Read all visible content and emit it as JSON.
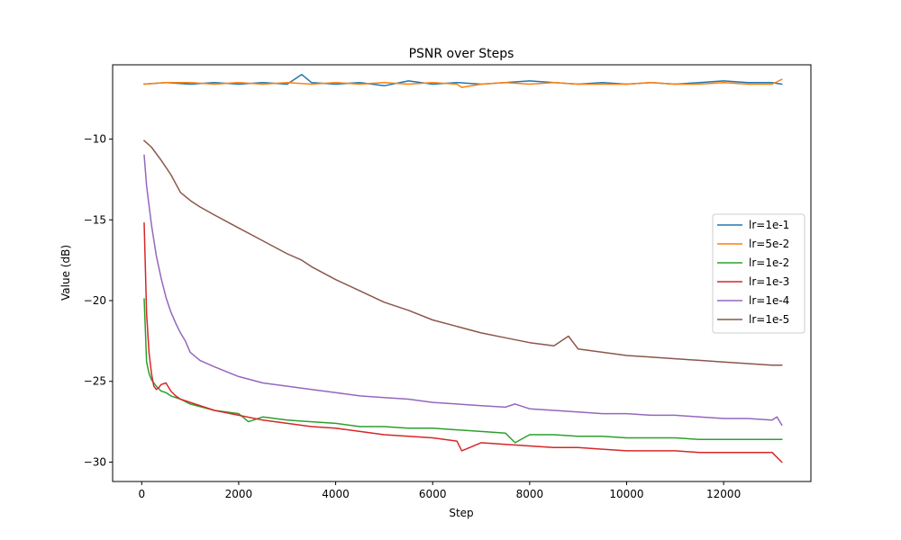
{
  "chart_data": {
    "type": "line",
    "title": "PSNR over Steps",
    "xlabel": "Step",
    "ylabel": "Value (dB)",
    "xlim": [
      -600,
      13800
    ],
    "ylim": [
      -31.2,
      -5.4
    ],
    "xticks": [
      0,
      2000,
      4000,
      6000,
      8000,
      10000,
      12000
    ],
    "yticks": [
      -30,
      -25,
      -20,
      -15,
      -10
    ],
    "xtick_labels": [
      "0",
      "2000",
      "4000",
      "6000",
      "8000",
      "10000",
      "12000"
    ],
    "ytick_labels": [
      "−30",
      "−25",
      "−20",
      "−15",
      "−10"
    ],
    "grid": false,
    "legend_position": "center-right",
    "series": [
      {
        "name": "lr=1e-1",
        "color": "#1f77b4",
        "x": [
          50,
          500,
          1000,
          1500,
          2000,
          2500,
          3000,
          3300,
          3500,
          4000,
          4500,
          5000,
          5500,
          6000,
          6500,
          7000,
          7500,
          8000,
          8500,
          9000,
          9500,
          10000,
          10500,
          11000,
          11500,
          12000,
          12500,
          13000,
          13200
        ],
        "values": [
          -6.6,
          -6.5,
          -6.6,
          -6.5,
          -6.6,
          -6.5,
          -6.6,
          -6.0,
          -6.5,
          -6.6,
          -6.5,
          -6.7,
          -6.4,
          -6.6,
          -6.5,
          -6.6,
          -6.5,
          -6.4,
          -6.5,
          -6.6,
          -6.5,
          -6.6,
          -6.5,
          -6.6,
          -6.5,
          -6.4,
          -6.5,
          -6.5,
          -6.6
        ]
      },
      {
        "name": "lr=5e-2",
        "color": "#ff7f0e",
        "x": [
          50,
          500,
          1000,
          1500,
          2000,
          2500,
          3000,
          3500,
          4000,
          4500,
          5000,
          5500,
          6000,
          6500,
          6600,
          7000,
          7500,
          8000,
          8500,
          9000,
          9500,
          10000,
          10500,
          11000,
          11500,
          12000,
          12500,
          13000,
          13200
        ],
        "values": [
          -6.6,
          -6.5,
          -6.5,
          -6.6,
          -6.5,
          -6.6,
          -6.5,
          -6.6,
          -6.5,
          -6.6,
          -6.5,
          -6.6,
          -6.5,
          -6.6,
          -6.8,
          -6.6,
          -6.5,
          -6.6,
          -6.5,
          -6.6,
          -6.6,
          -6.6,
          -6.5,
          -6.6,
          -6.6,
          -6.5,
          -6.6,
          -6.6,
          -6.3
        ]
      },
      {
        "name": "lr=1e-2",
        "color": "#2ca02c",
        "x": [
          50,
          100,
          150,
          200,
          300,
          400,
          500,
          600,
          800,
          1000,
          1500,
          2000,
          2200,
          2500,
          3000,
          3500,
          4000,
          4500,
          5000,
          5500,
          6000,
          6500,
          7000,
          7500,
          7700,
          8000,
          8500,
          9000,
          9500,
          10000,
          10500,
          11000,
          11500,
          12000,
          12500,
          13000,
          13200
        ],
        "values": [
          -19.9,
          -23.8,
          -24.5,
          -24.9,
          -25.3,
          -25.6,
          -25.7,
          -25.9,
          -26.1,
          -26.4,
          -26.8,
          -27.0,
          -27.5,
          -27.2,
          -27.4,
          -27.5,
          -27.6,
          -27.8,
          -27.8,
          -27.9,
          -27.9,
          -28.0,
          -28.1,
          -28.2,
          -28.8,
          -28.3,
          -28.3,
          -28.4,
          -28.4,
          -28.5,
          -28.5,
          -28.5,
          -28.6,
          -28.6,
          -28.6,
          -28.6,
          -28.6
        ]
      },
      {
        "name": "lr=1e-3",
        "color": "#d62728",
        "x": [
          50,
          100,
          150,
          200,
          250,
          300,
          350,
          400,
          500,
          600,
          700,
          800,
          1000,
          1500,
          2000,
          2500,
          3000,
          3500,
          4000,
          4500,
          5000,
          5500,
          6000,
          6500,
          6600,
          7000,
          7500,
          8000,
          8500,
          9000,
          9500,
          10000,
          10500,
          11000,
          11500,
          12000,
          12500,
          13000,
          13200
        ],
        "values": [
          -15.2,
          -20.8,
          -23.2,
          -24.5,
          -25.3,
          -25.5,
          -25.4,
          -25.2,
          -25.1,
          -25.6,
          -25.9,
          -26.1,
          -26.3,
          -26.8,
          -27.1,
          -27.4,
          -27.6,
          -27.8,
          -27.9,
          -28.1,
          -28.3,
          -28.4,
          -28.5,
          -28.7,
          -29.3,
          -28.8,
          -28.9,
          -29.0,
          -29.1,
          -29.1,
          -29.2,
          -29.3,
          -29.3,
          -29.3,
          -29.4,
          -29.4,
          -29.4,
          -29.4,
          -30.0
        ]
      },
      {
        "name": "lr=1e-4",
        "color": "#9467bd",
        "x": [
          50,
          100,
          200,
          300,
          400,
          500,
          600,
          700,
          800,
          900,
          1000,
          1200,
          1500,
          2000,
          2500,
          3000,
          3500,
          4000,
          4500,
          5000,
          5500,
          6000,
          6500,
          7000,
          7500,
          7700,
          8000,
          8500,
          9000,
          9500,
          10000,
          10500,
          11000,
          11500,
          12000,
          12500,
          13000,
          13100,
          13200
        ],
        "values": [
          -11.0,
          -12.9,
          -15.3,
          -17.2,
          -18.6,
          -19.8,
          -20.7,
          -21.4,
          -22.0,
          -22.5,
          -23.2,
          -23.7,
          -24.1,
          -24.7,
          -25.1,
          -25.3,
          -25.5,
          -25.7,
          -25.9,
          -26.0,
          -26.1,
          -26.3,
          -26.4,
          -26.5,
          -26.6,
          -26.4,
          -26.7,
          -26.8,
          -26.9,
          -27.0,
          -27.0,
          -27.1,
          -27.1,
          -27.2,
          -27.3,
          -27.3,
          -27.4,
          -27.2,
          -27.7
        ]
      },
      {
        "name": "lr=1e-5",
        "color": "#8c564b",
        "x": [
          50,
          200,
          400,
          600,
          800,
          1000,
          1200,
          1500,
          2000,
          2500,
          3000,
          3300,
          3500,
          4000,
          4500,
          5000,
          5500,
          6000,
          6500,
          7000,
          7500,
          8000,
          8500,
          8800,
          9000,
          9500,
          10000,
          10500,
          11000,
          11500,
          12000,
          12500,
          13000,
          13200
        ],
        "values": [
          -10.1,
          -10.5,
          -11.3,
          -12.2,
          -13.3,
          -13.8,
          -14.2,
          -14.7,
          -15.5,
          -16.3,
          -17.1,
          -17.5,
          -17.9,
          -18.7,
          -19.4,
          -20.1,
          -20.6,
          -21.2,
          -21.6,
          -22.0,
          -22.3,
          -22.6,
          -22.8,
          -22.2,
          -23.0,
          -23.2,
          -23.4,
          -23.5,
          -23.6,
          -23.7,
          -23.8,
          -23.9,
          -24.0,
          -24.0
        ]
      }
    ]
  }
}
